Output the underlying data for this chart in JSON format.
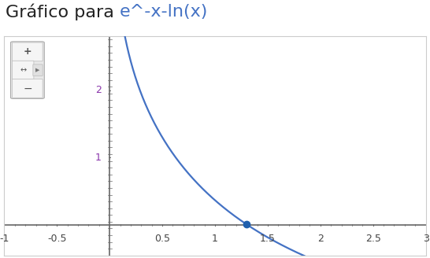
{
  "title_black": "Gráfico para ",
  "title_colored": "e^-x-ln(x)",
  "title_fontsize": 16,
  "title_color_black": "#222222",
  "title_color_blue": "#4472c4",
  "xlim": [
    -1,
    3
  ],
  "ylim": [
    -0.45,
    2.8
  ],
  "x_ticks": [
    -1,
    -0.5,
    0.5,
    1,
    1.5,
    2,
    2.5,
    3
  ],
  "y_ticks": [
    1,
    2
  ],
  "curve_color": "#4472c4",
  "curve_lw": 1.6,
  "dot_x": 1.3,
  "dot_color": "#1f5fad",
  "dot_size": 6,
  "bg_color": "#ffffff",
  "plot_bg": "#ffffff",
  "axis_color": "#666666",
  "tick_color": "#444444",
  "ytick_color": "#8833aa",
  "tick_fontsize": 9,
  "x_start": 0.05,
  "x_end": 2.72,
  "border_color": "#cccccc"
}
